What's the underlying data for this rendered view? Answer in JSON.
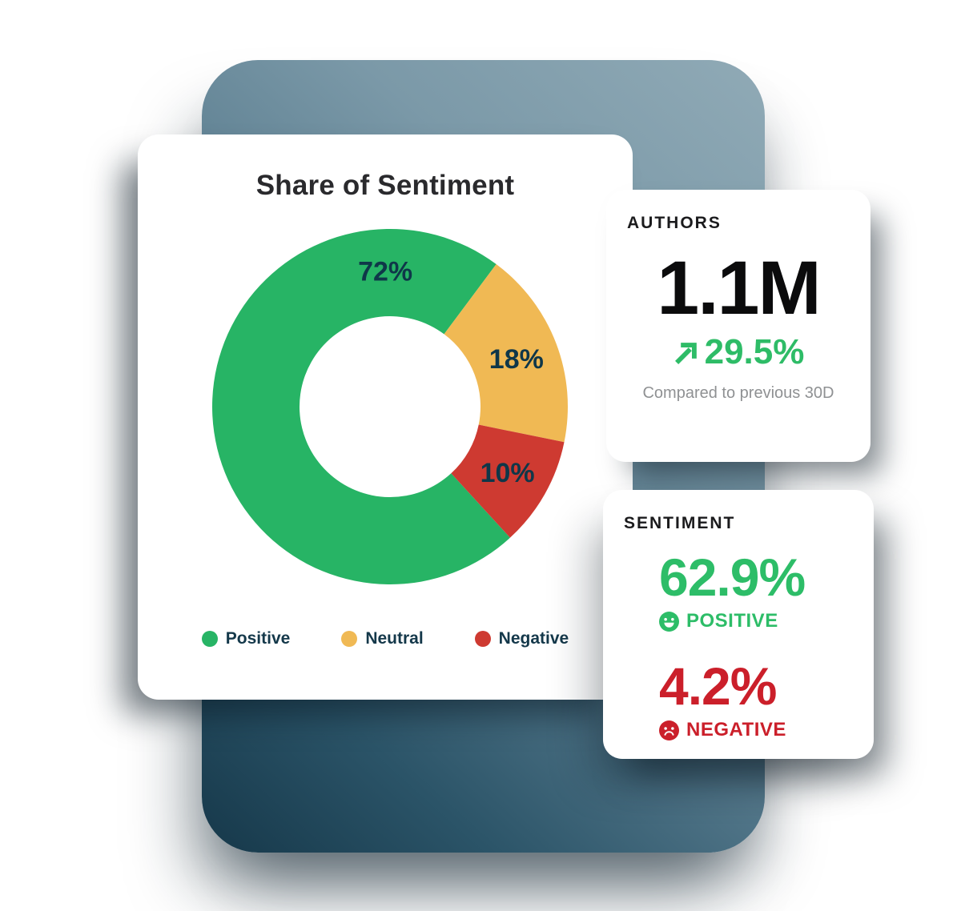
{
  "chart_card": {
    "title": "Share of Sentiment",
    "legend": [
      {
        "label": "Positive",
        "color": "#27b465"
      },
      {
        "label": "Neutral",
        "color": "#f0b954"
      },
      {
        "label": "Negative",
        "color": "#ce3a31"
      }
    ]
  },
  "chart_data": {
    "type": "pie",
    "subtype": "donut",
    "title": "Share of Sentiment",
    "categories": [
      "Positive",
      "Neutral",
      "Negative"
    ],
    "values": [
      72,
      18,
      10
    ],
    "unit": "%",
    "slice_labels": [
      "72%",
      "18%",
      "10%"
    ],
    "colors": [
      "#27b465",
      "#f0b954",
      "#ce3a31"
    ],
    "start_angle_deg": 137.5,
    "label_angles_deg": [
      358,
      69.5,
      119.5
    ],
    "label_color": "#0f3749",
    "inner_radius_ratio": 0.51,
    "legend_position": "bottom"
  },
  "authors_card": {
    "heading": "AUTHORS",
    "value": "1.1M",
    "change": "29.5%",
    "change_direction": "up",
    "change_color": "#2ebc67",
    "footnote": "Compared to previous 30D"
  },
  "sentiment_card": {
    "heading": "SENTIMENT",
    "positive": {
      "value": "62.9%",
      "label": "POSITIVE",
      "color": "#2dbd68"
    },
    "negative": {
      "value": "4.2%",
      "label": "NEGATIVE",
      "color": "#cb1f2a"
    }
  },
  "palette": {
    "backdrop_top": "#90aab6",
    "backdrop_bottom": "#16384a",
    "navy_text": "#14384a",
    "gray_text": "#8f9193"
  }
}
